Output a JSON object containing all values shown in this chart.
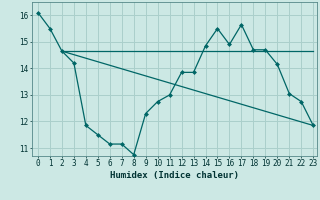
{
  "xlabel": "Humidex (Indice chaleur)",
  "bg_color": "#cce8e4",
  "grid_color": "#aacfcb",
  "line_color": "#006666",
  "xlim": [
    -0.5,
    23.3
  ],
  "ylim": [
    10.7,
    16.5
  ],
  "xticks": [
    0,
    1,
    2,
    3,
    4,
    5,
    6,
    7,
    8,
    9,
    10,
    11,
    12,
    13,
    14,
    15,
    16,
    17,
    18,
    19,
    20,
    21,
    22,
    23
  ],
  "yticks": [
    11,
    12,
    13,
    14,
    15,
    16
  ],
  "series1_x": [
    0,
    1,
    2,
    3,
    4,
    5,
    6,
    7,
    8,
    9,
    10,
    11,
    12,
    13,
    14,
    15,
    16,
    17,
    18,
    19,
    20,
    21,
    22,
    23
  ],
  "series1_y": [
    16.1,
    15.5,
    14.65,
    14.2,
    11.85,
    11.5,
    11.15,
    11.15,
    10.75,
    12.3,
    12.75,
    13.0,
    13.85,
    13.85,
    14.85,
    15.5,
    14.9,
    15.65,
    14.7,
    14.7,
    14.15,
    13.05,
    12.75,
    11.85
  ],
  "series2_x": [
    2,
    23
  ],
  "series2_y": [
    14.65,
    14.65
  ],
  "series3_x": [
    2,
    23
  ],
  "series3_y": [
    14.65,
    11.85
  ],
  "marker": "D",
  "markersize": 2.5,
  "linewidth": 0.9
}
